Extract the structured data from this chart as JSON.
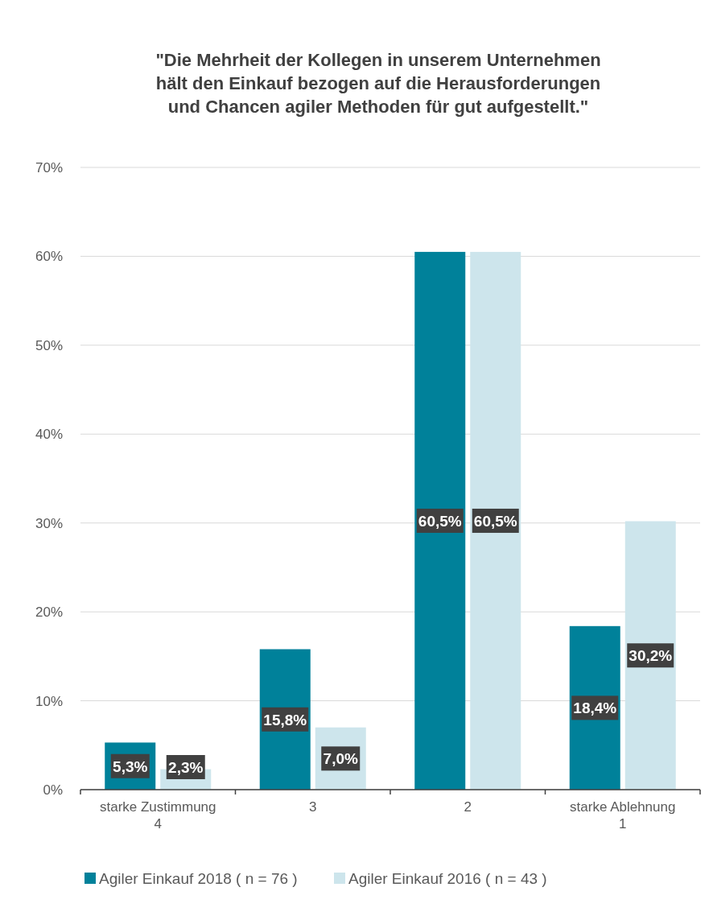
{
  "chart_data": {
    "type": "bar",
    "title": "\"Die Mehrheit der Kollegen in unserem Unternehmen hält den Einkauf bezogen auf die Herausforderungen und Chancen agiler Methoden für gut aufgestellt.\"",
    "categories": [
      "starke Zustimmung\n4",
      "3",
      "2",
      "starke Ablehnung\n1"
    ],
    "series": [
      {
        "name": "Agiler Einkauf 2018 ( n = 76 )",
        "color": "#00819a",
        "values": [
          5.3,
          15.8,
          60.5,
          18.4
        ],
        "value_labels": [
          "5,3%",
          "15,8%",
          "60,5%",
          "18,4%"
        ]
      },
      {
        "name": "Agiler Einkauf 2016 ( n = 43 )",
        "color": "#cde5ec",
        "values": [
          2.3,
          7.0,
          60.5,
          30.2
        ],
        "value_labels": [
          "2,3%",
          "7,0%",
          "60,5%",
          "30,2%"
        ]
      }
    ],
    "ylim": [
      0,
      70
    ],
    "yticks": [
      {
        "value": 0,
        "label": "0%"
      },
      {
        "value": 10,
        "label": "10%"
      },
      {
        "value": 20,
        "label": "20%"
      },
      {
        "value": 30,
        "label": "30%"
      },
      {
        "value": 40,
        "label": "40%"
      },
      {
        "value": 50,
        "label": "50%"
      },
      {
        "value": 60,
        "label": "60%"
      },
      {
        "value": 70,
        "label": "70%"
      }
    ],
    "grid": "y",
    "legend": "bottom"
  }
}
